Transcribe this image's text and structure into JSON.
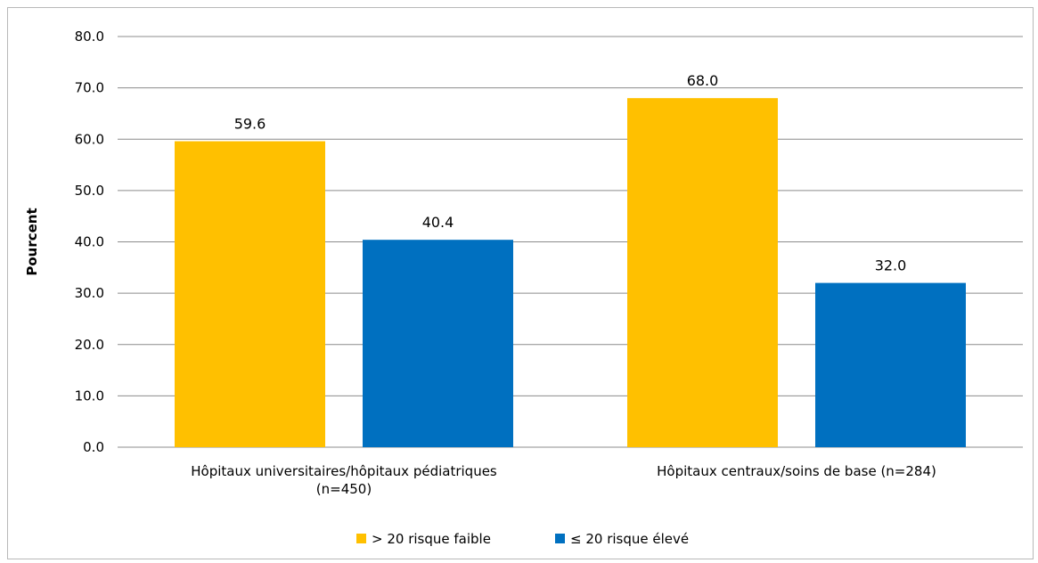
{
  "chart_data": {
    "type": "bar",
    "title": "",
    "ylabel": "Pourcent",
    "xlabel": "",
    "ylim": [
      0,
      80
    ],
    "yticks": [
      "0.0",
      "10.0",
      "20.0",
      "30.0",
      "40.0",
      "50.0",
      "60.0",
      "70.0",
      "80.0"
    ],
    "ytick_values": [
      0,
      10,
      20,
      30,
      40,
      50,
      60,
      70,
      80
    ],
    "grid": true,
    "legend_position": "bottom",
    "categories": [
      [
        "Hôpitaux universitaires/hôpitaux pédiatriques",
        "(n=450)"
      ],
      [
        "Hôpitaux centraux/soins de base (n=284)"
      ]
    ],
    "series": [
      {
        "name": "> 20 risque faible",
        "color": "#FFC000",
        "values": [
          59.6,
          68.0
        ],
        "labels": [
          "59.6",
          "68.0"
        ]
      },
      {
        "name": "≤ 20 risque élevé",
        "color": "#0070C0",
        "values": [
          40.4,
          32.0
        ],
        "labels": [
          "40.4",
          "32.0"
        ]
      }
    ]
  }
}
